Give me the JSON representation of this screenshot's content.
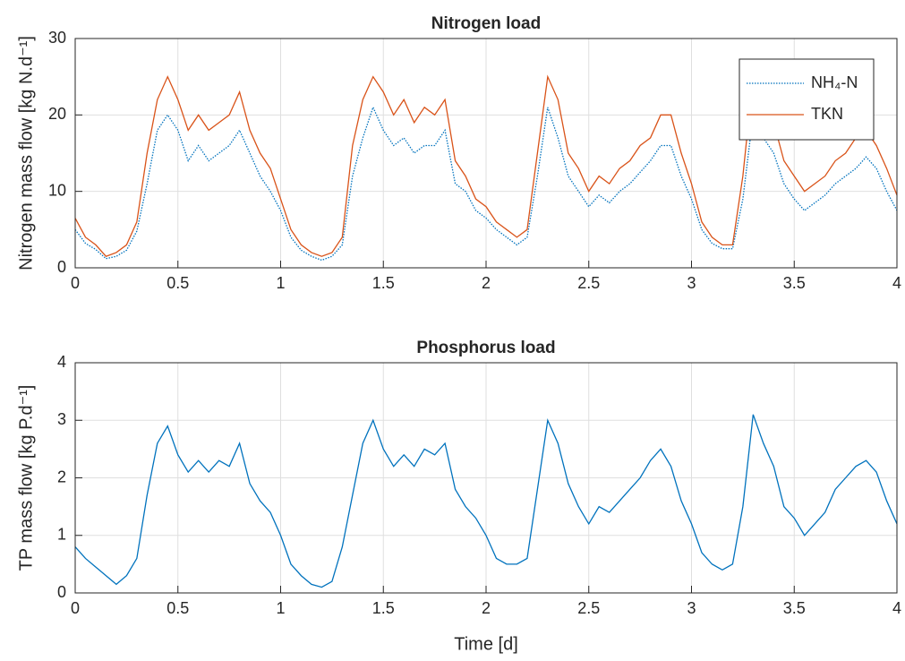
{
  "chart_data": [
    {
      "type": "line",
      "title": "Nitrogen load",
      "ylabel": "Nitrogen mass flow [kg N.d⁻¹]",
      "x": [
        0,
        0.05,
        0.1,
        0.15,
        0.2,
        0.25,
        0.3,
        0.35,
        0.4,
        0.45,
        0.5,
        0.55,
        0.6,
        0.65,
        0.7,
        0.75,
        0.8,
        0.85,
        0.9,
        0.95,
        1,
        1.05,
        1.1,
        1.15,
        1.2,
        1.25,
        1.3,
        1.35,
        1.4,
        1.45,
        1.5,
        1.55,
        1.6,
        1.65,
        1.7,
        1.75,
        1.8,
        1.85,
        1.9,
        1.95,
        2,
        2.05,
        2.1,
        2.15,
        2.2,
        2.25,
        2.3,
        2.35,
        2.4,
        2.45,
        2.5,
        2.55,
        2.6,
        2.65,
        2.7,
        2.75,
        2.8,
        2.85,
        2.9,
        2.95,
        3,
        3.05,
        3.1,
        3.15,
        3.2,
        3.25,
        3.3,
        3.35,
        3.4,
        3.45,
        3.5,
        3.55,
        3.6,
        3.65,
        3.7,
        3.75,
        3.8,
        3.85,
        3.9,
        3.95,
        4
      ],
      "series": [
        {
          "name": "NH₄-N",
          "color": "#0072bd",
          "dash": "dotted",
          "values": [
            5,
            3.2,
            2.4,
            1.2,
            1.5,
            2.3,
            4.8,
            11,
            18,
            20,
            18,
            14,
            16,
            14,
            15,
            16,
            18,
            15,
            12,
            10,
            7.5,
            4,
            2.3,
            1.5,
            1,
            1.5,
            3,
            12,
            17,
            21,
            18,
            16,
            17,
            15,
            16,
            16,
            18,
            11,
            10,
            7.5,
            6.5,
            5,
            4,
            3,
            4,
            12,
            21,
            17,
            12,
            10,
            8,
            9.5,
            8.5,
            10,
            11,
            12.5,
            14,
            16,
            16,
            12,
            9,
            5,
            3.2,
            2.5,
            2.5,
            9,
            20,
            17,
            15,
            11,
            9,
            7.5,
            8.5,
            9.5,
            11,
            12,
            13,
            14.5,
            13,
            10,
            7.5
          ]
        },
        {
          "name": "TKN",
          "color": "#d95319",
          "dash": "solid",
          "values": [
            6.5,
            4,
            3,
            1.5,
            2,
            3,
            6,
            15,
            22,
            25,
            22,
            18,
            20,
            18,
            19,
            20,
            23,
            18,
            15,
            13,
            9,
            5,
            3,
            2,
            1.5,
            2,
            4,
            16,
            22,
            25,
            23,
            20,
            22,
            19,
            21,
            20,
            22,
            14,
            12,
            9,
            8,
            6,
            5,
            4,
            5,
            15,
            25,
            22,
            15,
            13,
            10,
            12,
            11,
            13,
            14,
            16,
            17,
            20,
            20,
            15,
            11,
            6,
            4,
            3,
            3,
            12,
            25,
            21,
            19,
            14,
            12,
            10,
            11,
            12,
            14,
            15,
            17,
            18,
            16,
            13,
            9.5
          ]
        }
      ],
      "xlim": [
        0,
        4
      ],
      "xticks": [
        0,
        0.5,
        1,
        1.5,
        2,
        2.5,
        3,
        3.5,
        4
      ],
      "ylim": [
        0,
        30
      ],
      "yticks": [
        0,
        10,
        20,
        30
      ],
      "grid": true,
      "legend": "upper right"
    },
    {
      "type": "line",
      "title": "Phosphorus load",
      "ylabel": "TP mass flow [kg P.d⁻¹]",
      "xlabel": "Time [d]",
      "x": [
        0,
        0.05,
        0.1,
        0.15,
        0.2,
        0.25,
        0.3,
        0.35,
        0.4,
        0.45,
        0.5,
        0.55,
        0.6,
        0.65,
        0.7,
        0.75,
        0.8,
        0.85,
        0.9,
        0.95,
        1,
        1.05,
        1.1,
        1.15,
        1.2,
        1.25,
        1.3,
        1.35,
        1.4,
        1.45,
        1.5,
        1.55,
        1.6,
        1.65,
        1.7,
        1.75,
        1.8,
        1.85,
        1.9,
        1.95,
        2,
        2.05,
        2.1,
        2.15,
        2.2,
        2.25,
        2.3,
        2.35,
        2.4,
        2.45,
        2.5,
        2.55,
        2.6,
        2.65,
        2.7,
        2.75,
        2.8,
        2.85,
        2.9,
        2.95,
        3,
        3.05,
        3.1,
        3.15,
        3.2,
        3.25,
        3.3,
        3.35,
        3.4,
        3.45,
        3.5,
        3.55,
        3.6,
        3.65,
        3.7,
        3.75,
        3.8,
        3.85,
        3.9,
        3.95,
        4
      ],
      "series": [
        {
          "color": "#0072bd",
          "dash": "solid",
          "values": [
            0.8,
            0.6,
            0.45,
            0.3,
            0.15,
            0.3,
            0.6,
            1.7,
            2.6,
            2.9,
            2.4,
            2.1,
            2.3,
            2.1,
            2.3,
            2.2,
            2.6,
            1.9,
            1.6,
            1.4,
            1.0,
            0.5,
            0.3,
            0.15,
            0.1,
            0.2,
            0.8,
            1.7,
            2.6,
            3.0,
            2.5,
            2.2,
            2.4,
            2.2,
            2.5,
            2.4,
            2.6,
            1.8,
            1.5,
            1.3,
            1.0,
            0.6,
            0.5,
            0.5,
            0.6,
            1.8,
            3.0,
            2.6,
            1.9,
            1.5,
            1.2,
            1.5,
            1.4,
            1.6,
            1.8,
            2.0,
            2.3,
            2.5,
            2.2,
            1.6,
            1.2,
            0.7,
            0.5,
            0.4,
            0.5,
            1.5,
            3.1,
            2.6,
            2.2,
            1.5,
            1.3,
            1.0,
            1.2,
            1.4,
            1.8,
            2.0,
            2.2,
            2.3,
            2.1,
            1.6,
            1.2
          ]
        }
      ],
      "xlim": [
        0,
        4
      ],
      "xticks": [
        0,
        0.5,
        1,
        1.5,
        2,
        2.5,
        3,
        3.5,
        4
      ],
      "ylim": [
        0,
        4
      ],
      "yticks": [
        0,
        1,
        2,
        3,
        4
      ],
      "grid": true
    }
  ]
}
